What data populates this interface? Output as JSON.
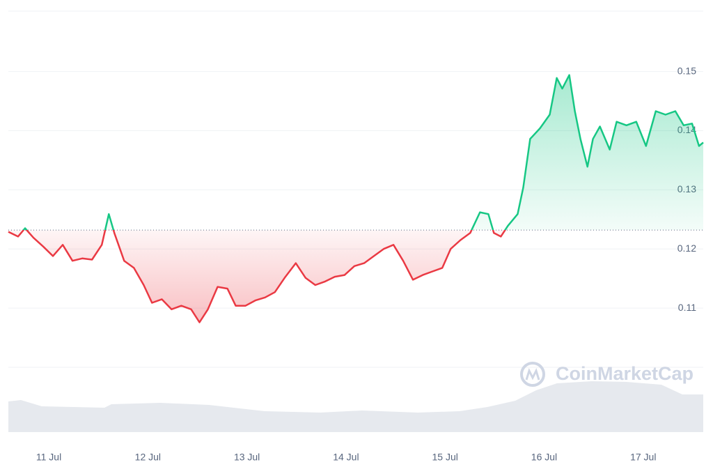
{
  "chart_data": {
    "type": "line",
    "watermark": "CoinMarketCap",
    "x": [
      10.592,
      10.69,
      10.761,
      10.845,
      10.944,
      11.042,
      11.141,
      11.239,
      11.338,
      11.437,
      11.535,
      11.606,
      11.662,
      11.761,
      11.859,
      11.958,
      12.042,
      12.141,
      12.239,
      12.338,
      12.437,
      12.521,
      12.606,
      12.704,
      12.803,
      12.887,
      12.986,
      13.085,
      13.183,
      13.282,
      13.38,
      13.493,
      13.592,
      13.69,
      13.789,
      13.887,
      13.986,
      14.085,
      14.183,
      14.282,
      14.38,
      14.479,
      14.577,
      14.676,
      14.775,
      14.873,
      14.972,
      15.056,
      15.155,
      15.254,
      15.352,
      15.437,
      15.493,
      15.563,
      15.634,
      15.732,
      15.789,
      15.859,
      15.958,
      16.056,
      16.127,
      16.183,
      16.254,
      16.31,
      16.366,
      16.437,
      16.493,
      16.563,
      16.662,
      16.732,
      16.831,
      16.93,
      17.028,
      17.127,
      17.225,
      17.324,
      17.408,
      17.493,
      17.563,
      17.606
    ],
    "values": [
      0.1229,
      0.1221,
      0.1235,
      0.1219,
      0.1204,
      0.1188,
      0.1207,
      0.118,
      0.1184,
      0.1182,
      0.1207,
      0.1259,
      0.1227,
      0.118,
      0.1168,
      0.1139,
      0.1109,
      0.1115,
      0.1098,
      0.1104,
      0.1098,
      0.1076,
      0.1098,
      0.1136,
      0.1133,
      0.1104,
      0.1104,
      0.1113,
      0.1118,
      0.1127,
      0.1151,
      0.1176,
      0.1151,
      0.1139,
      0.1145,
      0.1153,
      0.1156,
      0.1171,
      0.1176,
      0.1188,
      0.12,
      0.1207,
      0.118,
      0.1148,
      0.1156,
      0.1162,
      0.1168,
      0.12,
      0.1215,
      0.1227,
      0.1262,
      0.1259,
      0.1227,
      0.1221,
      0.1239,
      0.1259,
      0.1304,
      0.1386,
      0.1404,
      0.1427,
      0.1489,
      0.1471,
      0.1494,
      0.1433,
      0.1386,
      0.1339,
      0.1386,
      0.1407,
      0.1368,
      0.1415,
      0.1409,
      0.1415,
      0.1374,
      0.1433,
      0.1427,
      0.1433,
      0.1409,
      0.1412,
      0.1374,
      0.138
    ],
    "baseline": 0.1232,
    "up_color": "#16c784",
    "down_color": "#ea3943",
    "xlim": [
      10.592,
      17.606
    ],
    "xticks": [
      {
        "value": 11,
        "label": "11 Jul"
      },
      {
        "value": 12,
        "label": "12 Jul"
      },
      {
        "value": 13,
        "label": "13 Jul"
      },
      {
        "value": 14,
        "label": "14 Jul"
      },
      {
        "value": 15,
        "label": "15 Jul"
      },
      {
        "value": 16,
        "label": "16 Jul"
      },
      {
        "value": 17,
        "label": "17 Jul"
      }
    ],
    "ylim": [
      0.1,
      0.1602
    ],
    "yticks": [
      0.11,
      0.12,
      0.13,
      0.14,
      0.15
    ],
    "grid": true
  }
}
